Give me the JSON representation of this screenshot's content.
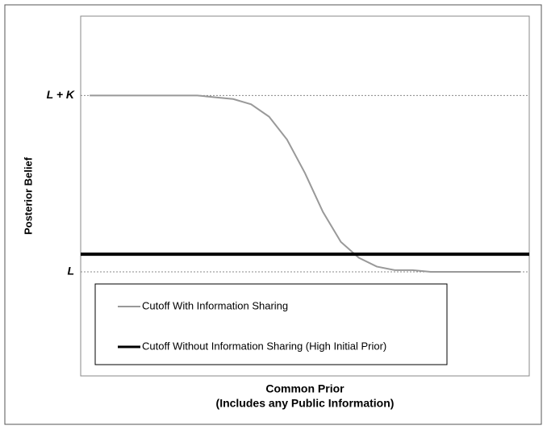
{
  "chart_data": {
    "type": "line",
    "ylabel": "Posterior Belief",
    "xlabel": [
      "Common Prior",
      "(Includes any Public Information)"
    ],
    "xlim": [
      0,
      100
    ],
    "ylim": [
      0.41,
      2.45
    ],
    "yticks": [
      {
        "value": 1,
        "label": "L"
      },
      {
        "value": 2,
        "label": "L + K"
      }
    ],
    "grid": true,
    "legend": "lower left",
    "series": [
      {
        "name": "Cutoff With Information Sharing",
        "color": "#999999",
        "width": 2,
        "x": [
          2,
          6,
          10,
          14,
          18,
          22,
          26,
          30,
          34,
          38,
          42,
          46,
          50,
          54,
          58,
          62,
          66,
          70,
          74,
          78,
          82,
          86,
          90,
          94,
          98
        ],
        "values": [
          2,
          2,
          2,
          2,
          2,
          2,
          2,
          1.99,
          1.98,
          1.95,
          1.88,
          1.75,
          1.56,
          1.34,
          1.17,
          1.08,
          1.03,
          1.01,
          1.01,
          1,
          1,
          1,
          1,
          1,
          1
        ]
      },
      {
        "name": "Cutoff Without Information Sharing (High Initial Prior)",
        "color": "#000000",
        "width": 4,
        "x": [
          0,
          100
        ],
        "values": [
          1.1,
          1.1
        ]
      }
    ]
  }
}
